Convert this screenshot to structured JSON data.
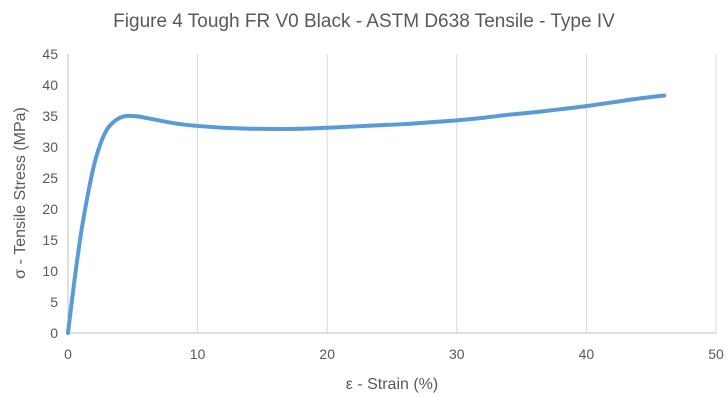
{
  "chart_data": {
    "type": "line",
    "title": "Figure 4 Tough FR V0 Black - ASTM D638 Tensile - Type IV",
    "xlabel": "ε - Strain (%)",
    "ylabel": "σ - Tensile Stress (MPa)",
    "xlim": [
      0,
      50
    ],
    "ylim": [
      0,
      45
    ],
    "xticks": [
      0,
      10,
      20,
      30,
      40,
      50
    ],
    "yticks": [
      0,
      5,
      10,
      15,
      20,
      25,
      30,
      35,
      40,
      45
    ],
    "grid": "vertical",
    "legend": "none",
    "series": [
      {
        "color": "#5b9bd5",
        "x": [
          0,
          0.5,
          1.0,
          1.5,
          2.0,
          2.5,
          3.0,
          3.5,
          4.0,
          4.5,
          5.0,
          5.5,
          6.0,
          7.0,
          8.0,
          9.0,
          10.0,
          12.0,
          14.0,
          16.0,
          18.0,
          20.0,
          22.0,
          24.0,
          26.0,
          28.0,
          30.0,
          32.0,
          34.0,
          36.0,
          38.0,
          40.0,
          42.0,
          44.0,
          46.0
        ],
        "y": [
          0,
          8.5,
          16.0,
          22.0,
          27.0,
          30.5,
          32.8,
          34.0,
          34.7,
          35.0,
          35.0,
          34.9,
          34.7,
          34.3,
          33.9,
          33.6,
          33.4,
          33.1,
          32.95,
          32.9,
          32.95,
          33.1,
          33.3,
          33.5,
          33.7,
          34.0,
          34.3,
          34.7,
          35.2,
          35.6,
          36.1,
          36.6,
          37.2,
          37.8,
          38.3
        ]
      }
    ]
  }
}
